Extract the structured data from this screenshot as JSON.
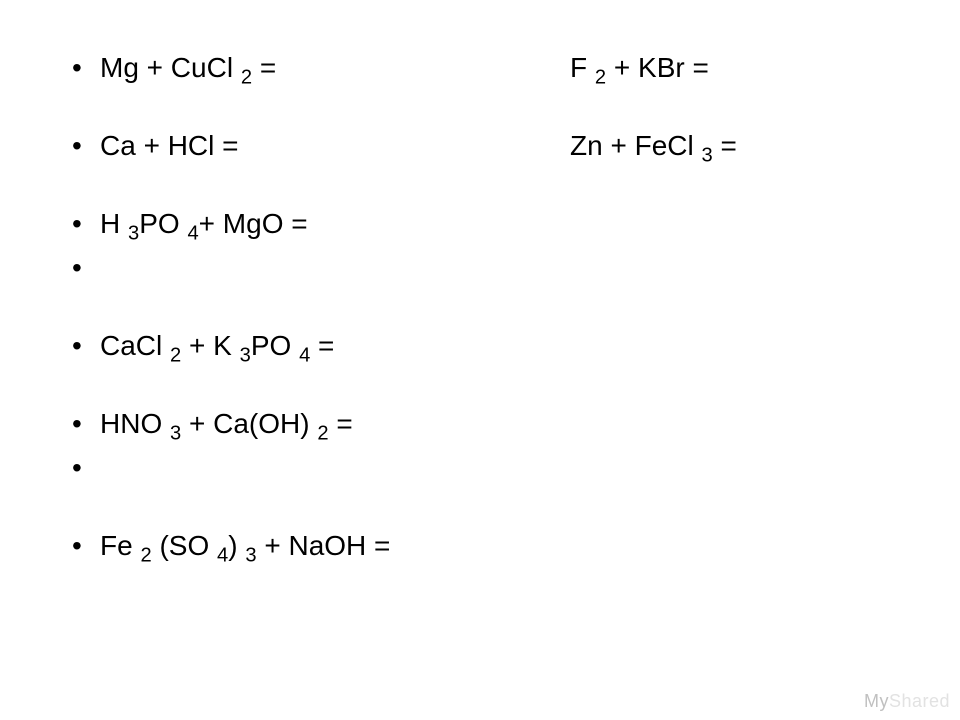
{
  "equations": {
    "r1_left": "Mg + CuCl <sub>2</sub> =",
    "r1_right": "F <sub>2</sub> + KBr =",
    "r2_left": "Ca + HCl =",
    "r2_right": "Zn + FeCl <sub>3</sub> =",
    "r3": "H <sub>3</sub>PO <sub>4</sub>+ MgO =",
    "r4": "CaCl <sub>2</sub> + K <sub>3</sub>PO <sub>4</sub> =",
    "r5": "HNO <sub>3</sub> + Ca(OH) <sub>2</sub> =",
    "r6": "Fe <sub>2</sub> (SO <sub>4</sub>) <sub>3</sub> + NaOH ="
  },
  "watermark": {
    "part1": "My",
    "part2": "Shared"
  },
  "style": {
    "font_family": "Arial",
    "font_size_pt": 21,
    "text_color": "#000000",
    "background_color": "#ffffff",
    "watermark_color_strong": "#c0c0c0",
    "watermark_color_faint": "#e2e2e2"
  }
}
